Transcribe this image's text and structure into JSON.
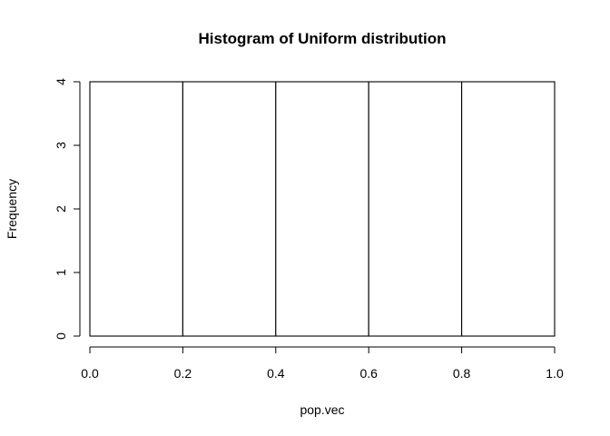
{
  "chart_data": {
    "type": "bar",
    "title": "Histogram of Uniform distribution",
    "xlabel": "pop.vec",
    "ylabel": "Frequency",
    "bins": [
      {
        "x0": 0.0,
        "x1": 0.2,
        "count": 4
      },
      {
        "x0": 0.2,
        "x1": 0.4,
        "count": 4
      },
      {
        "x0": 0.4,
        "x1": 0.6,
        "count": 4
      },
      {
        "x0": 0.6,
        "x1": 0.8,
        "count": 4
      },
      {
        "x0": 0.8,
        "x1": 1.0,
        "count": 4
      }
    ],
    "xlim": [
      0,
      1
    ],
    "ylim": [
      0,
      4
    ],
    "x_ticks": [
      "0.0",
      "0.2",
      "0.4",
      "0.6",
      "0.8",
      "1.0"
    ],
    "y_ticks": [
      "0",
      "1",
      "2",
      "3",
      "4"
    ],
    "bar_fill": "#ffffff",
    "bar_stroke": "#000000",
    "grid": false,
    "legend": "none"
  }
}
